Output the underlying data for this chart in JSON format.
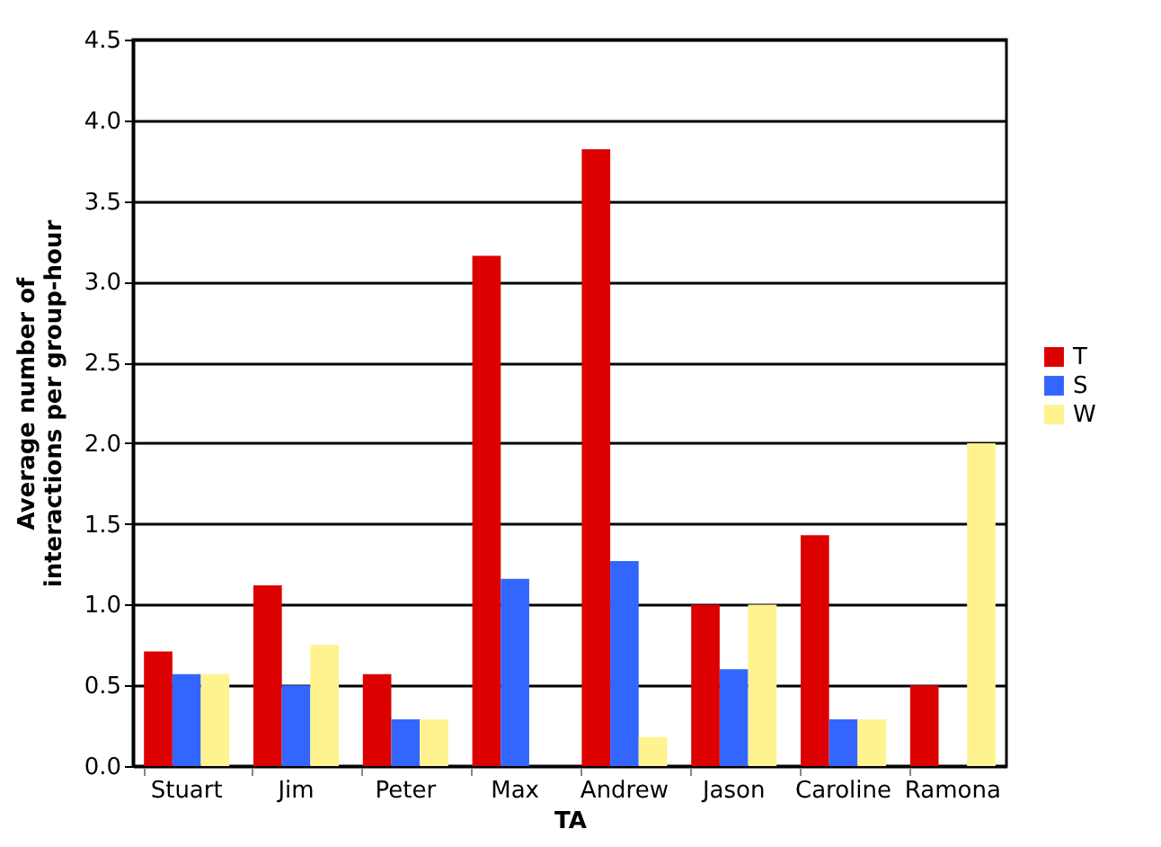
{
  "chart_data": {
    "type": "bar",
    "xlabel": "TA",
    "ylabel": "Average number of interactions per group-hour",
    "categories": [
      "Stuart",
      "Jim",
      "Peter",
      "Max",
      "Andrew",
      "Jason",
      "Caroline",
      "Ramona"
    ],
    "series": [
      {
        "name": "T",
        "color": "#dd0000",
        "values": [
          0.71,
          1.12,
          0.57,
          3.16,
          3.82,
          1.0,
          1.43,
          0.5
        ]
      },
      {
        "name": "S",
        "color": "#3366ff",
        "values": [
          0.57,
          0.5,
          0.29,
          1.16,
          1.27,
          0.6,
          0.29,
          0
        ]
      },
      {
        "name": "W",
        "color": "#fff38f",
        "values": [
          0.57,
          0.75,
          0.29,
          0,
          0.18,
          1.0,
          0.29,
          2.0
        ]
      }
    ],
    "ylim": [
      0,
      4.5
    ],
    "yticks": [
      {
        "value": 0,
        "label": "0.0"
      },
      0.5,
      {
        "value": 1,
        "label": "1.0"
      },
      1.5,
      {
        "value": 2,
        "label": "2.0"
      },
      2.5,
      {
        "value": 3,
        "label": "3.0"
      },
      3.5,
      {
        "value": 4,
        "label": "4.0"
      },
      4.5
    ],
    "grid": "y",
    "legend": "right"
  }
}
